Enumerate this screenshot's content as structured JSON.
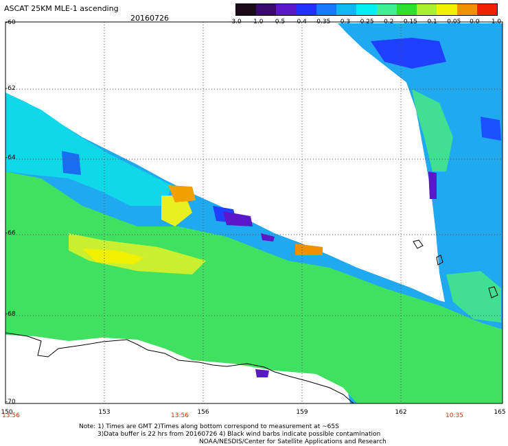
{
  "header": {
    "title": "ASCAT 25KM MLE-1 ascending",
    "date": "20160726"
  },
  "colorbar": {
    "ticks": [
      "-3.0",
      "-1.0",
      "-0.5",
      "-0.4",
      "-0.35",
      "-0.3",
      "-0.25",
      "-0.2",
      "-0.15",
      "-0.1",
      "-0.05",
      "0.0",
      "1.0"
    ],
    "colors": [
      "#1a0a1a",
      "#3a0a6a",
      "#5a18c8",
      "#2030ff",
      "#1a78ff",
      "#10b8f0",
      "#00f0f0",
      "#40f090",
      "#30e030",
      "#a8f030",
      "#f0f000",
      "#f09000",
      "#f02000"
    ]
  },
  "map": {
    "lat_labels": [
      "-60",
      "-62",
      "-64",
      "-66",
      "-68",
      "-70"
    ],
    "lon_labels": [
      "150",
      "153",
      "156",
      "159",
      "162",
      "165"
    ],
    "time_labels": [
      "13:56",
      "13:56",
      "10:35"
    ]
  },
  "notes": {
    "line1": "Note: 1) Times are GMT 2)Times along bottom correspond to measurement at ~65S",
    "line2": "3)Data buffer is 22 hrs from 20160726 4) Black wind barbs indicate possible contamination",
    "line3": "NOAA/NESDIS/Center for Satellite Applications and Research"
  }
}
